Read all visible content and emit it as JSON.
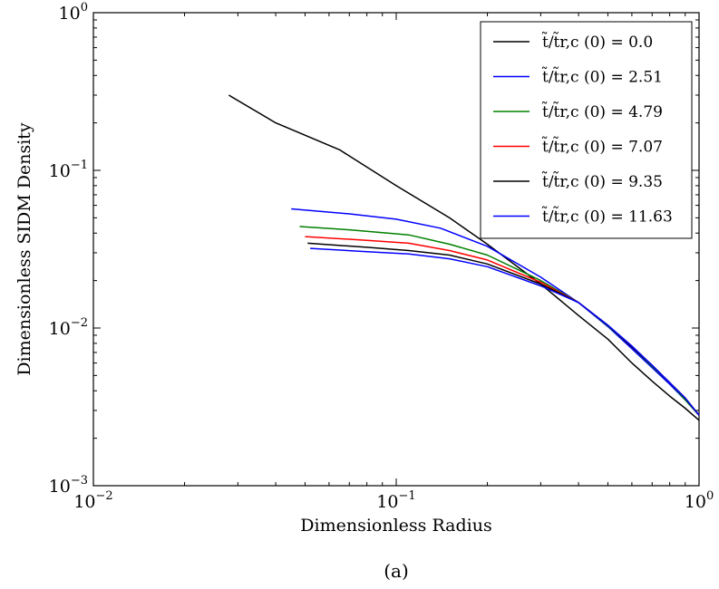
{
  "chart_data": {
    "type": "line",
    "xlabel": "Dimensionless Radius",
    "ylabel": "Dimensionless SIDM Density",
    "caption": "(a)",
    "xscale": "log",
    "yscale": "log",
    "xlim": [
      0.01,
      1
    ],
    "ylim": [
      0.001,
      1
    ],
    "x_ticks": [
      {
        "base": "10",
        "exp": "−2"
      },
      {
        "base": "10",
        "exp": "−1"
      },
      {
        "base": "10",
        "exp": "0"
      }
    ],
    "y_ticks": [
      {
        "base": "10",
        "exp": "−3"
      },
      {
        "base": "10",
        "exp": "−2"
      },
      {
        "base": "10",
        "exp": "−1"
      },
      {
        "base": "10",
        "exp": "0"
      }
    ],
    "legend_position": "top-right",
    "series": [
      {
        "name": "t̃/t̃r,c (0) = 0.0",
        "color": "#000000",
        "x": [
          0.028,
          0.04,
          0.065,
          0.1,
          0.15,
          0.2,
          0.3,
          0.4,
          0.5,
          0.6,
          0.7,
          0.8,
          0.9,
          1.0
        ],
        "y": [
          0.3,
          0.2,
          0.135,
          0.08,
          0.05,
          0.034,
          0.019,
          0.012,
          0.0085,
          0.006,
          0.0046,
          0.0037,
          0.0031,
          0.0026
        ]
      },
      {
        "name": "t̃/t̃r,c (0) = 2.51",
        "color": "#0000ff",
        "x": [
          0.045,
          0.07,
          0.1,
          0.14,
          0.2,
          0.3,
          0.4,
          0.5,
          0.6,
          0.7,
          0.8,
          0.9,
          1.0
        ],
        "y": [
          0.057,
          0.053,
          0.049,
          0.043,
          0.033,
          0.021,
          0.0145,
          0.0102,
          0.0074,
          0.0056,
          0.0044,
          0.0035,
          0.0028
        ]
      },
      {
        "name": "t̃/t̃r,c (0) = 4.79",
        "color": "#008000",
        "x": [
          0.048,
          0.07,
          0.11,
          0.15,
          0.2,
          0.3,
          0.4,
          0.5,
          0.6,
          0.7,
          0.8,
          0.9,
          1.0
        ],
        "y": [
          0.044,
          0.042,
          0.039,
          0.034,
          0.029,
          0.02,
          0.0145,
          0.0103,
          0.0076,
          0.0057,
          0.0045,
          0.0035,
          0.0028
        ]
      },
      {
        "name": "t̃/t̃r,c (0) = 7.07",
        "color": "#ff0000",
        "x": [
          0.05,
          0.08,
          0.11,
          0.15,
          0.2,
          0.3,
          0.4,
          0.5,
          0.6,
          0.7,
          0.8,
          0.9,
          1.0
        ],
        "y": [
          0.038,
          0.036,
          0.0345,
          0.031,
          0.027,
          0.0195,
          0.0145,
          0.0104,
          0.0076,
          0.0058,
          0.0045,
          0.0036,
          0.0028
        ]
      },
      {
        "name": "t̃/t̃r,c (0) = 9.35",
        "color": "#000000",
        "x": [
          0.051,
          0.08,
          0.11,
          0.15,
          0.2,
          0.3,
          0.4,
          0.5,
          0.6,
          0.7,
          0.8,
          0.9,
          1.0
        ],
        "y": [
          0.0345,
          0.0325,
          0.031,
          0.029,
          0.0255,
          0.019,
          0.0145,
          0.0104,
          0.0076,
          0.0058,
          0.0045,
          0.0036,
          0.0028
        ]
      },
      {
        "name": "t̃/t̃r,c (0) = 11.63",
        "color": "#0000ff",
        "x": [
          0.052,
          0.08,
          0.11,
          0.15,
          0.2,
          0.3,
          0.4,
          0.5,
          0.6,
          0.7,
          0.8,
          0.9,
          1.0
        ],
        "y": [
          0.032,
          0.0305,
          0.0295,
          0.0275,
          0.0245,
          0.0185,
          0.0145,
          0.0104,
          0.0077,
          0.0058,
          0.0045,
          0.0036,
          0.0028
        ]
      }
    ]
  }
}
